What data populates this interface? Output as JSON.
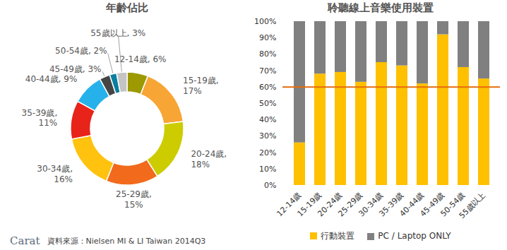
{
  "chart_data": [
    {
      "type": "donut",
      "title": "年齡佔比",
      "categories": [
        "12-14歲",
        "15-19歲",
        "20-24歲",
        "25-29歲",
        "30-34歲",
        "35-39歲",
        "40-44歲",
        "45-49歲",
        "50-54歲",
        "55歲以上"
      ],
      "values": [
        6,
        17,
        18,
        15,
        16,
        11,
        9,
        3,
        2,
        3
      ],
      "value_labels": [
        "12-14歲, 6%",
        "15-19歲, 17%",
        "20-24歲, 18%",
        "25-29歲, 15%",
        "30-34歲, 16%",
        "35-39歲, 11%",
        "40-44歲, 9%",
        "45-49歲, 3%",
        "50-54歲, 2%",
        "55歲以上, 3%"
      ],
      "colors": [
        "#9c9a00",
        "#f7a535",
        "#cccc00",
        "#f26a1b",
        "#ffc20e",
        "#e8231a",
        "#27b1ea",
        "#454545",
        "#0a7f9f",
        "#c4c4c4"
      ],
      "data_labels": true
    },
    {
      "type": "bar",
      "title": "聆聽線上音樂使用裝置",
      "stacked": true,
      "categories": [
        "12-14歲",
        "15-19歲",
        "20-24歲",
        "25-29歲",
        "30-34歲",
        "35-39歲",
        "40-44歲",
        "45-49歲",
        "50-54歲",
        "55歲以上"
      ],
      "series": [
        {
          "name": "行動裝置",
          "color": "#ffc000",
          "values": [
            26,
            68,
            69,
            63,
            75,
            73,
            62,
            92,
            72,
            65
          ]
        },
        {
          "name": "PC / Laptop ONLY",
          "color": "#808080",
          "values": [
            74,
            32,
            31,
            37,
            25,
            27,
            38,
            8,
            28,
            35
          ]
        }
      ],
      "ylim": [
        0,
        100
      ],
      "yticks": [
        {
          "value": 0,
          "label": "0%"
        },
        {
          "value": 10,
          "label": "10%"
        },
        {
          "value": 20,
          "label": "20%"
        },
        {
          "value": 30,
          "label": "30%"
        },
        {
          "value": 40,
          "label": "40%"
        },
        {
          "value": 50,
          "label": "50%"
        },
        {
          "value": 60,
          "label": "60%"
        },
        {
          "value": 70,
          "label": "70%"
        },
        {
          "value": 80,
          "label": "80%"
        },
        {
          "value": 90,
          "label": "90%"
        },
        {
          "value": 100,
          "label": "100%"
        }
      ],
      "reference_line": {
        "value": 60,
        "color": "#e46c0a"
      },
      "grid": false,
      "legend": "bottom"
    }
  ],
  "footer": {
    "logo": "Carat",
    "source": "資料來源：Nielsen MI & LI Taiwan 2014Q3"
  }
}
